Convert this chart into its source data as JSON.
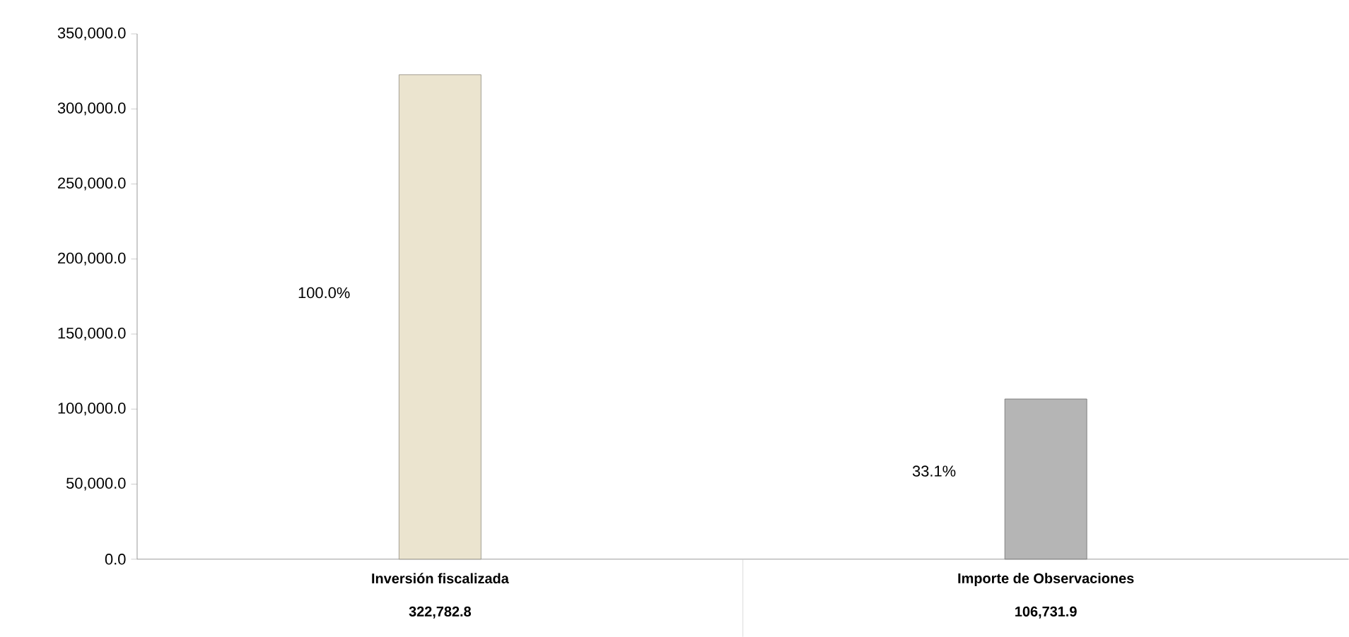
{
  "chart_data": {
    "type": "bar",
    "categories": [
      "Inversión fiscalizada",
      "Importe de Observaciones"
    ],
    "values": [
      322782.8,
      106731.9
    ],
    "colors": [
      "#ebe4cf",
      "#b5b5b5"
    ],
    "value_labels": [
      "322,782.8",
      "106,731.9"
    ],
    "ylim": [
      0,
      350000
    ],
    "yticks": [
      {
        "value": 0,
        "label": "0.0"
      },
      {
        "value": 50000,
        "label": "50,000.0"
      },
      {
        "value": 100000,
        "label": "100,000.0"
      },
      {
        "value": 150000,
        "label": "150,000.0"
      },
      {
        "value": 200000,
        "label": "200,000.0"
      },
      {
        "value": 250000,
        "label": "250,000.0"
      },
      {
        "value": 300000,
        "label": "300,000.0"
      },
      {
        "value": 350000,
        "label": "350,000.0"
      }
    ],
    "annotations": [
      "100.0%",
      "33.1%"
    ],
    "grid": false
  }
}
